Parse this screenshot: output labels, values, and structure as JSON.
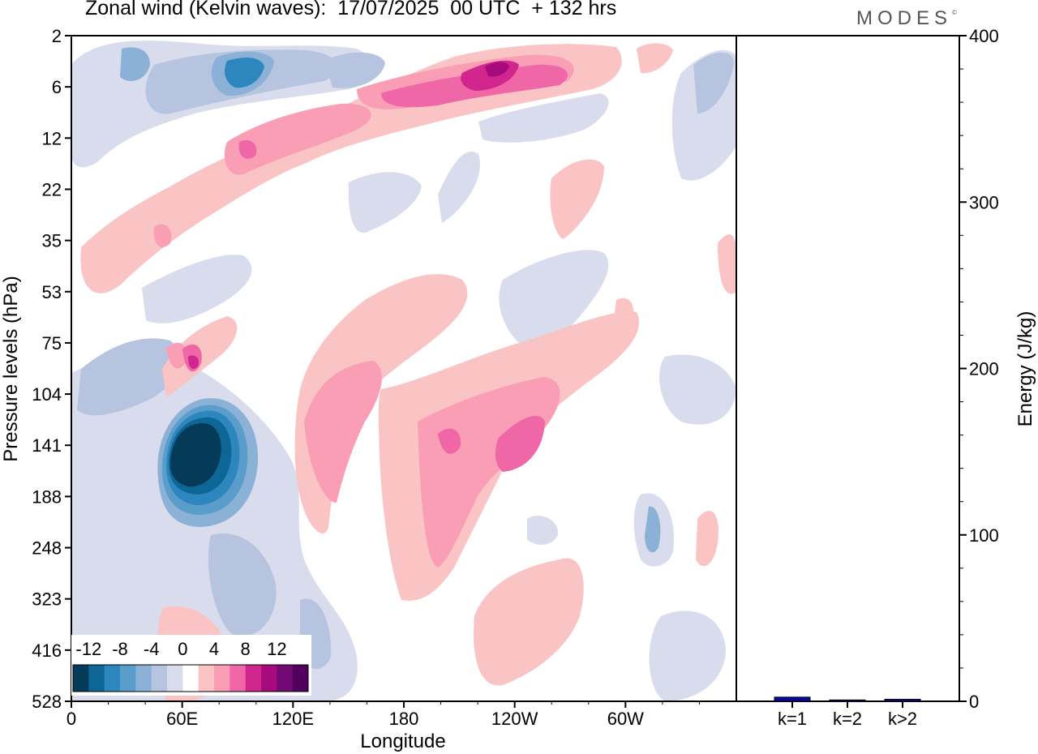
{
  "header": {
    "title": "Zonal wind (Kelvin waves):  17/07/2025  00 UTC  + 132 hrs",
    "brand": "MODES",
    "brand_mark": "©"
  },
  "chart_data": [
    {
      "type": "heatmap",
      "xlabel": "Longitude",
      "ylabel": "Pressure levels (hPa)",
      "x_ticks": [
        "0",
        "60E",
        "120E",
        "180",
        "120W",
        "60W"
      ],
      "x_tick_degrees": [
        0,
        60,
        120,
        180,
        240,
        300
      ],
      "xlim": [
        0,
        360
      ],
      "y_ticks": [
        "2",
        "6",
        "12",
        "22",
        "35",
        "53",
        "75",
        "104",
        "141",
        "188",
        "248",
        "323",
        "416",
        "528"
      ],
      "colorbar": {
        "levels": [
          -14,
          -12,
          -10,
          -8,
          -6,
          -4,
          -2,
          2,
          4,
          6,
          8,
          10,
          12,
          14
        ],
        "labels": [
          "-12",
          "-8",
          "-4",
          "0",
          "4",
          "8",
          "12"
        ],
        "colors": [
          "#063a59",
          "#0d6696",
          "#2d86bd",
          "#5a9dcb",
          "#8cb1d7",
          "#b6c4e0",
          "#d8dcec",
          "#ffffff",
          "#fac4c4",
          "#f99eb4",
          "#ef67a6",
          "#d1268e",
          "#a60b7c",
          "#720a74",
          "#52005e"
        ]
      },
      "features": [
        {
          "name": "negative-max",
          "lon": 67,
          "level": 141,
          "value": -14
        },
        {
          "name": "positive-core-lower-east",
          "lon": 240,
          "level": 141,
          "value": 6
        },
        {
          "name": "positive-core-lower",
          "lon": 200,
          "level": 141,
          "value": 6
        },
        {
          "name": "positive-core-upper",
          "lon": 240,
          "level": 6,
          "value": 10
        },
        {
          "name": "positive-core-upper-east",
          "lon": 265,
          "level": 6,
          "value": 8
        },
        {
          "name": "positive-small",
          "lon": 66,
          "level": 75,
          "value": 8
        },
        {
          "name": "negative-upper",
          "lon": 92,
          "level": 6,
          "value": -8
        },
        {
          "name": "negative-upper-west",
          "lon": 38,
          "level": 6,
          "value": -6
        },
        {
          "name": "negative-mid",
          "lon": 18,
          "level": 104,
          "value": -4
        },
        {
          "name": "positive-mid",
          "lon": 94,
          "level": 12,
          "value": 6
        }
      ]
    },
    {
      "type": "bar",
      "ylabel": "Energy (J/kg)",
      "categories": [
        "k=1",
        "k=2",
        "k>2"
      ],
      "values": [
        2.5,
        0.8,
        1.2
      ],
      "ylim": [
        0,
        400
      ],
      "y_ticks": [
        "0",
        "100",
        "200",
        "300",
        "400"
      ],
      "colors": [
        "#0a0aa0",
        "#0a0aa0",
        "#0a0aa0"
      ]
    }
  ]
}
